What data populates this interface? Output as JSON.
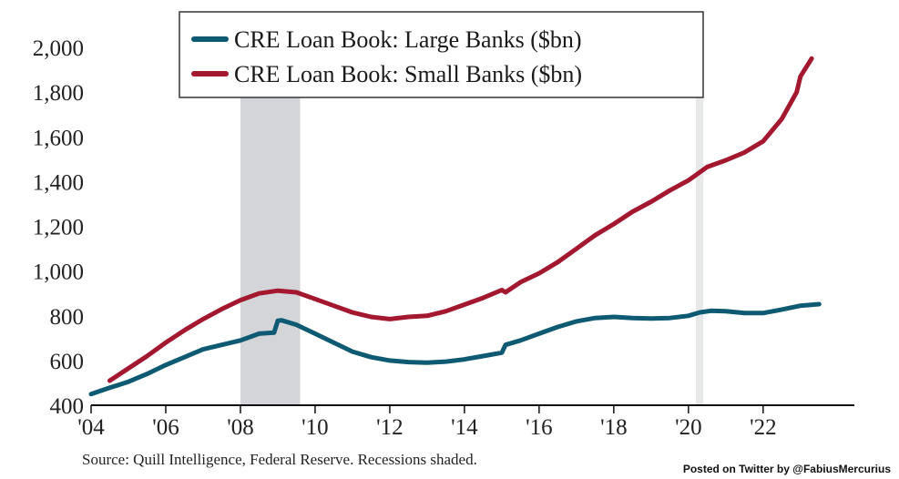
{
  "chart_data": {
    "type": "line",
    "x_ticks": [
      "'04",
      "'06",
      "'08",
      "'10",
      "'12",
      "'14",
      "'16",
      "'18",
      "'20",
      "'22"
    ],
    "y_ticks": [
      "400",
      "600",
      "800",
      "1,000",
      "1,200",
      "1,400",
      "1,600",
      "1,800",
      "2,000"
    ],
    "xlim": [
      2004,
      2024.2
    ],
    "ylim": [
      400,
      2000
    ],
    "grid": false,
    "legend_position": "top-center",
    "recessions": [
      [
        2008.0,
        2009.6
      ],
      [
        2020.2,
        2020.4
      ]
    ],
    "series": [
      {
        "name": "CRE Loan Book: Large Banks ($bn)",
        "color": "#0e5a73",
        "x": [
          2004.0,
          2004.5,
          2005.0,
          2005.5,
          2006.0,
          2006.5,
          2007.0,
          2007.5,
          2008.0,
          2008.5,
          2008.9,
          2009.0,
          2009.1,
          2009.5,
          2010.0,
          2010.5,
          2011.0,
          2011.5,
          2012.0,
          2012.5,
          2013.0,
          2013.5,
          2014.0,
          2014.5,
          2015.0,
          2015.1,
          2015.5,
          2016.0,
          2016.5,
          2017.0,
          2017.5,
          2018.0,
          2018.5,
          2019.0,
          2019.5,
          2020.0,
          2020.3,
          2020.6,
          2021.0,
          2021.5,
          2022.0,
          2022.5,
          2023.0,
          2023.5
        ],
        "values": [
          450,
          478,
          505,
          540,
          580,
          615,
          650,
          670,
          690,
          720,
          725,
          778,
          780,
          760,
          720,
          680,
          640,
          615,
          600,
          593,
          590,
          595,
          605,
          620,
          635,
          670,
          690,
          720,
          750,
          775,
          790,
          795,
          790,
          788,
          790,
          800,
          815,
          822,
          820,
          812,
          812,
          828,
          845,
          852
        ]
      },
      {
        "name": "CRE Loan Book: Small Banks ($bn)",
        "color": "#a3182f",
        "x": [
          2004.5,
          2005.0,
          2005.5,
          2006.0,
          2006.5,
          2007.0,
          2007.5,
          2008.0,
          2008.5,
          2009.0,
          2009.5,
          2010.0,
          2010.5,
          2011.0,
          2011.5,
          2012.0,
          2012.5,
          2013.0,
          2013.5,
          2014.0,
          2014.5,
          2015.0,
          2015.1,
          2015.5,
          2016.0,
          2016.5,
          2017.0,
          2017.5,
          2018.0,
          2018.5,
          2019.0,
          2019.5,
          2020.0,
          2020.5,
          2021.0,
          2021.5,
          2022.0,
          2022.5,
          2022.9,
          2023.0,
          2023.3
        ],
        "values": [
          510,
          565,
          620,
          680,
          735,
          785,
          830,
          870,
          900,
          912,
          905,
          875,
          845,
          815,
          795,
          785,
          795,
          800,
          820,
          850,
          880,
          915,
          905,
          950,
          990,
          1040,
          1100,
          1160,
          1210,
          1265,
          1310,
          1360,
          1405,
          1465,
          1495,
          1530,
          1580,
          1680,
          1800,
          1870,
          1950
        ]
      }
    ]
  },
  "source_text": "Source: Quill Intelligence, Federal Reserve. Recessions shaded.",
  "credit_text": "Posted on Twitter by @FabiusMercurius"
}
